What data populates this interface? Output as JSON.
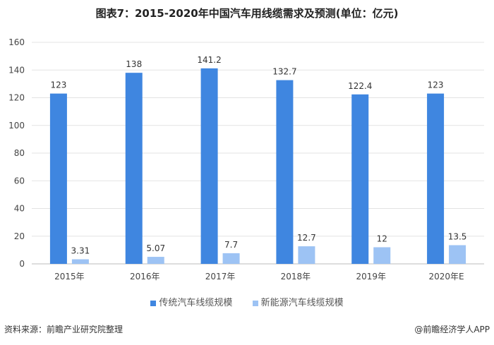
{
  "chart_data": {
    "type": "bar",
    "title": "图表7：2015-2020年中国汽车用线缆需求及预测(单位：亿元)",
    "categories": [
      "2015年",
      "2016年",
      "2017年",
      "2018年",
      "2019年",
      "2020年E"
    ],
    "series": [
      {
        "name": "传统汽车线缆规模",
        "values": [
          123,
          138,
          141.2,
          132.7,
          122.4,
          123
        ],
        "labels": [
          "123",
          "138",
          "141.2",
          "132.7",
          "122.4",
          "123"
        ],
        "color": "#3f86e0"
      },
      {
        "name": "新能源汽车线缆规模",
        "values": [
          3.31,
          5.07,
          7.7,
          12.7,
          12,
          13.5
        ],
        "labels": [
          "3.31",
          "5.07",
          "7.7",
          "12.7",
          "12",
          "13.5"
        ],
        "color": "#9dc3f4"
      }
    ],
    "ylim": [
      0,
      160
    ],
    "yticks": [
      "0",
      "20",
      "40",
      "60",
      "80",
      "100",
      "120",
      "140",
      "160"
    ],
    "grid": true,
    "legend": "bottom"
  },
  "footer": {
    "source": "资料来源：前瞻产业研究院整理",
    "credit": "@前瞻经济学人APP"
  }
}
